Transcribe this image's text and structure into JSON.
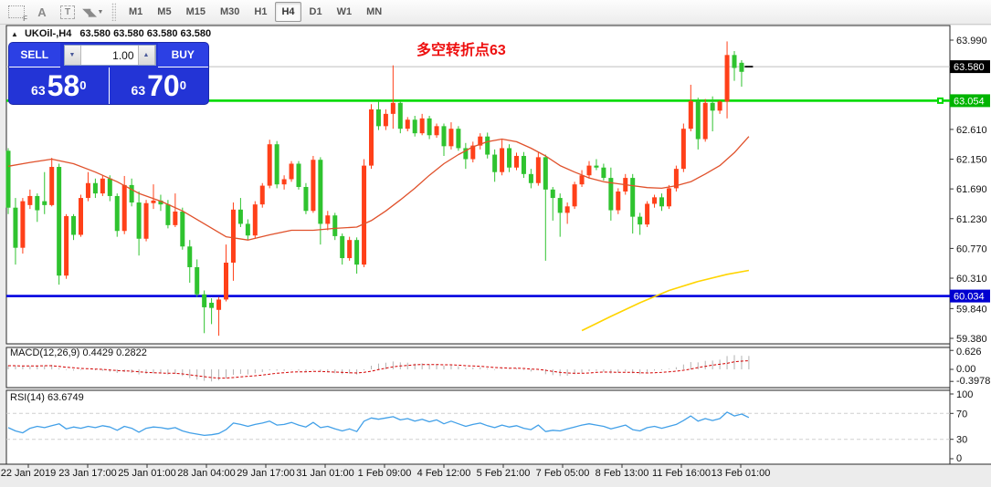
{
  "toolbar": {
    "icons": [
      {
        "name": "dotted-box-f-icon",
        "glyph": "F"
      },
      {
        "name": "letter-a-icon",
        "glyph": "A"
      },
      {
        "name": "text-label-icon",
        "glyph": "T"
      },
      {
        "name": "arrows-icon",
        "glyph": "◥◣"
      },
      {
        "name": "dropdown-caret-icon",
        "glyph": "▼"
      }
    ],
    "timeframes": [
      "M1",
      "M5",
      "M15",
      "M30",
      "H1",
      "H4",
      "D1",
      "W1",
      "MN"
    ],
    "active_timeframe": "H4"
  },
  "chart_header": {
    "collapse_icon": "▲",
    "symbol_period": "UKOil-,H4",
    "ohlc": "63.580 63.580 63.580 63.580"
  },
  "quote_panel": {
    "sell_label": "SELL",
    "buy_label": "BUY",
    "volume": "1.00",
    "down_arrow": "▼",
    "up_arrow": "▲",
    "sell_price_small": "63",
    "sell_price_big": "58",
    "sell_price_sup": "0",
    "buy_price_small": "63",
    "buy_price_big": "70",
    "buy_price_sup": "0"
  },
  "annotation": {
    "text": "多空转折点63",
    "color": "#ee1010"
  },
  "price_axis": {
    "plain_ticks": [
      [
        "63.990",
        63.99
      ],
      [
        "62.610",
        62.61
      ],
      [
        "62.150",
        62.15
      ],
      [
        "61.690",
        61.69
      ],
      [
        "61.230",
        61.23
      ],
      [
        "60.770",
        60.77
      ],
      [
        "60.310",
        60.31
      ],
      [
        "59.840",
        59.84
      ],
      [
        "59.380",
        59.38
      ]
    ],
    "current_badge": {
      "label": "63.580",
      "price": 63.58,
      "bg": "#000000"
    },
    "green_badge": {
      "label": "63.054",
      "price": 63.054,
      "bg": "#00b400"
    },
    "blue_badge": {
      "label": "60.034",
      "price": 60.034,
      "bg": "#0000d0"
    }
  },
  "macd_panel": {
    "label": "MACD(12,26,9) 0.4429 0.2822",
    "axis": [
      [
        "0.626",
        0.626
      ],
      [
        "0.00",
        0.0
      ],
      [
        "-0.3978",
        -0.3978
      ]
    ]
  },
  "rsi_panel": {
    "label": "RSI(14) 63.6749",
    "axis": [
      [
        "100",
        100
      ],
      [
        "70",
        70
      ],
      [
        "30",
        30
      ],
      [
        "0",
        0
      ]
    ],
    "levels": [
      70,
      30
    ]
  },
  "time_axis": {
    "labels": [
      "22 Jan 2019",
      "23 Jan 17:00",
      "25 Jan 01:00",
      "28 Jan 04:00",
      "29 Jan 17:00",
      "31 Jan 01:00",
      "1 Feb 09:00",
      "4 Feb 12:00",
      "5 Feb 21:00",
      "7 Feb 05:00",
      "8 Feb 13:00",
      "11 Feb 16:00",
      "13 Feb 01:00"
    ]
  },
  "colors": {
    "up": "#ff4019",
    "down": "#2fc32f",
    "doji": "#1a1a1a",
    "ma_fast": "#e0512b",
    "ma_slow": "#ffd400",
    "hline_green": "#00da00",
    "hline_blue": "#0000e0",
    "current_price_line": "#bfbfbf",
    "macd_bar": "#b2b2b2",
    "macd_signal": "#d40000",
    "rsi_line": "#42a0e8",
    "rsi_level": "#cfcfcf",
    "panel_border": "#2a2a2a",
    "axis_text": "#111111"
  },
  "chart_data": {
    "type": "candlestick",
    "symbol": "UKOil-",
    "period": "H4",
    "ylim": [
      59.25,
      64.05
    ],
    "candles_ohlc": [
      [
        62.28,
        62.32,
        61.3,
        61.4
      ],
      [
        61.4,
        61.55,
        60.52,
        60.78
      ],
      [
        60.78,
        61.55,
        60.69,
        61.5
      ],
      [
        61.44,
        61.68,
        61.38,
        61.58
      ],
      [
        61.58,
        61.62,
        61.18,
        61.36
      ],
      [
        61.5,
        61.95,
        61.3,
        61.44
      ],
      [
        61.44,
        62.17,
        61.42,
        62.03
      ],
      [
        62.03,
        62.08,
        60.21,
        60.35
      ],
      [
        60.35,
        61.3,
        60.3,
        61.27
      ],
      [
        61.27,
        61.3,
        60.9,
        60.98
      ],
      [
        60.98,
        61.6,
        60.95,
        61.55
      ],
      [
        61.55,
        61.95,
        61.5,
        61.78
      ],
      [
        61.78,
        61.85,
        61.55,
        61.62
      ],
      [
        61.62,
        61.9,
        61.58,
        61.85
      ],
      [
        61.85,
        61.9,
        61.5,
        61.58
      ],
      [
        61.58,
        61.62,
        60.95,
        61.04
      ],
      [
        61.04,
        61.89,
        60.99,
        61.75
      ],
      [
        61.75,
        61.85,
        61.42,
        61.48
      ],
      [
        61.48,
        61.65,
        60.66,
        60.92
      ],
      [
        60.92,
        61.52,
        60.88,
        61.47
      ],
      [
        61.47,
        61.76,
        61.38,
        61.51
      ],
      [
        61.51,
        61.6,
        61.35,
        61.45
      ],
      [
        61.45,
        61.52,
        61.08,
        61.13
      ],
      [
        61.13,
        61.62,
        61.1,
        61.34
      ],
      [
        61.34,
        61.4,
        60.75,
        60.8
      ],
      [
        60.8,
        60.9,
        60.24,
        60.48
      ],
      [
        60.48,
        60.6,
        60.02,
        60.06
      ],
      [
        60.06,
        60.12,
        59.46,
        59.86
      ],
      [
        59.93,
        60.0,
        59.6,
        59.85
      ],
      [
        59.82,
        60.02,
        59.42,
        59.98
      ],
      [
        59.98,
        60.83,
        59.95,
        60.55
      ],
      [
        60.55,
        61.48,
        60.27,
        61.37
      ],
      [
        61.37,
        61.55,
        61.1,
        61.15
      ],
      [
        61.15,
        61.22,
        60.9,
        60.97
      ],
      [
        60.97,
        61.5,
        60.92,
        61.45
      ],
      [
        61.45,
        61.78,
        61.4,
        61.74
      ],
      [
        61.74,
        62.45,
        61.7,
        62.38
      ],
      [
        62.38,
        62.43,
        61.7,
        61.76
      ],
      [
        61.76,
        61.9,
        61.68,
        61.84
      ],
      [
        61.84,
        62.12,
        61.8,
        62.08
      ],
      [
        62.08,
        62.12,
        61.68,
        61.72
      ],
      [
        61.72,
        61.78,
        61.3,
        61.35
      ],
      [
        61.35,
        62.2,
        61.32,
        62.14
      ],
      [
        62.14,
        62.18,
        60.83,
        61.15
      ],
      [
        61.15,
        61.35,
        61.05,
        61.28
      ],
      [
        61.28,
        61.32,
        60.9,
        60.96
      ],
      [
        60.96,
        61.0,
        60.52,
        60.62
      ],
      [
        60.62,
        60.95,
        60.58,
        60.9
      ],
      [
        60.9,
        60.94,
        60.38,
        60.52
      ],
      [
        60.52,
        62.15,
        60.48,
        62.05
      ],
      [
        62.05,
        63.0,
        62.0,
        62.92
      ],
      [
        62.92,
        63.05,
        62.6,
        62.66
      ],
      [
        62.66,
        62.92,
        62.6,
        62.85
      ],
      [
        62.85,
        63.6,
        62.62,
        63.02
      ],
      [
        63.02,
        63.05,
        62.55,
        62.62
      ],
      [
        62.62,
        62.8,
        62.58,
        62.76
      ],
      [
        62.76,
        62.82,
        62.5,
        62.55
      ],
      [
        62.55,
        62.85,
        62.52,
        62.78
      ],
      [
        62.78,
        62.82,
        62.46,
        62.52
      ],
      [
        62.52,
        62.7,
        62.48,
        62.66
      ],
      [
        62.66,
        62.7,
        62.2,
        62.35
      ],
      [
        62.35,
        62.72,
        62.3,
        62.62
      ],
      [
        62.62,
        62.66,
        62.28,
        62.32
      ],
      [
        62.32,
        62.4,
        62.0,
        62.15
      ],
      [
        62.15,
        62.42,
        62.1,
        62.36
      ],
      [
        62.36,
        62.55,
        62.3,
        62.5
      ],
      [
        62.5,
        62.56,
        62.16,
        62.22
      ],
      [
        62.22,
        62.3,
        61.8,
        61.95
      ],
      [
        61.95,
        62.45,
        61.9,
        62.32
      ],
      [
        62.32,
        62.38,
        61.95,
        62.02
      ],
      [
        62.02,
        62.25,
        61.98,
        62.2
      ],
      [
        62.2,
        62.26,
        61.86,
        61.92
      ],
      [
        61.92,
        62.0,
        61.7,
        61.78
      ],
      [
        61.78,
        62.25,
        61.74,
        62.18
      ],
      [
        62.18,
        62.22,
        60.58,
        61.68
      ],
      [
        61.68,
        61.72,
        61.2,
        61.55
      ],
      [
        61.55,
        61.62,
        60.95,
        61.32
      ],
      [
        61.32,
        61.48,
        61.15,
        61.42
      ],
      [
        61.42,
        61.8,
        61.38,
        61.76
      ],
      [
        61.76,
        61.98,
        61.72,
        61.9
      ],
      [
        61.9,
        62.12,
        61.85,
        62.05
      ],
      [
        62.05,
        62.15,
        61.98,
        62.02
      ],
      [
        62.02,
        62.08,
        61.82,
        61.86
      ],
      [
        61.86,
        62.02,
        61.2,
        61.36
      ],
      [
        61.36,
        61.7,
        61.3,
        61.65
      ],
      [
        61.65,
        61.92,
        61.6,
        61.86
      ],
      [
        61.86,
        61.92,
        61.0,
        61.26
      ],
      [
        61.26,
        61.32,
        60.98,
        61.14
      ],
      [
        61.14,
        61.5,
        61.1,
        61.46
      ],
      [
        61.46,
        61.6,
        61.4,
        61.56
      ],
      [
        61.56,
        61.62,
        61.35,
        61.42
      ],
      [
        61.42,
        61.75,
        61.38,
        61.7
      ],
      [
        61.7,
        62.05,
        61.65,
        62.0
      ],
      [
        62.0,
        62.7,
        61.95,
        62.62
      ],
      [
        62.62,
        63.3,
        62.58,
        63.05
      ],
      [
        63.05,
        63.1,
        62.3,
        62.46
      ],
      [
        62.46,
        63.08,
        62.42,
        63.02
      ],
      [
        63.02,
        63.12,
        62.58,
        62.9
      ],
      [
        62.9,
        63.06,
        62.85,
        63.04
      ],
      [
        63.04,
        63.97,
        62.78,
        63.76
      ],
      [
        63.76,
        63.82,
        63.36,
        63.56
      ],
      [
        63.64,
        63.68,
        63.27,
        63.5
      ],
      [
        63.58,
        63.58,
        63.58,
        63.58
      ]
    ],
    "ma_fast_points": [
      [
        0,
        62.04
      ],
      [
        3,
        62.1
      ],
      [
        6,
        62.15
      ],
      [
        9,
        62.08
      ],
      [
        12,
        61.95
      ],
      [
        15,
        61.8
      ],
      [
        18,
        61.62
      ],
      [
        21,
        61.5
      ],
      [
        24,
        61.35
      ],
      [
        27,
        61.15
      ],
      [
        30,
        60.95
      ],
      [
        33,
        60.9
      ],
      [
        36,
        60.98
      ],
      [
        39,
        61.05
      ],
      [
        42,
        61.05
      ],
      [
        45,
        61.08
      ],
      [
        48,
        61.1
      ],
      [
        50,
        61.2
      ],
      [
        52,
        61.35
      ],
      [
        54,
        61.52
      ],
      [
        56,
        61.7
      ],
      [
        58,
        61.9
      ],
      [
        60,
        62.08
      ],
      [
        62,
        62.22
      ],
      [
        64,
        62.34
      ],
      [
        66,
        62.42
      ],
      [
        68,
        62.46
      ],
      [
        70,
        62.42
      ],
      [
        72,
        62.32
      ],
      [
        74,
        62.2
      ],
      [
        76,
        62.05
      ],
      [
        78,
        61.95
      ],
      [
        80,
        61.86
      ],
      [
        82,
        61.8
      ],
      [
        84,
        61.77
      ],
      [
        86,
        61.74
      ],
      [
        88,
        61.71
      ],
      [
        90,
        61.7
      ],
      [
        92,
        61.74
      ],
      [
        94,
        61.8
      ],
      [
        96,
        61.92
      ],
      [
        98,
        62.05
      ],
      [
        100,
        62.25
      ],
      [
        102,
        62.5
      ]
    ],
    "ma_slow_points": [
      [
        79,
        59.5
      ],
      [
        83,
        59.72
      ],
      [
        87,
        59.93
      ],
      [
        91,
        60.12
      ],
      [
        95,
        60.26
      ],
      [
        99,
        60.37
      ],
      [
        102,
        60.43
      ]
    ],
    "hline_green_price": 63.054,
    "hline_blue_price": 60.034,
    "current_price": 63.58,
    "macd_main": [
      0.14,
      0.12,
      0.1,
      0.11,
      0.12,
      0.13,
      0.15,
      0.04,
      -0.02,
      -0.04,
      -0.02,
      0.0,
      -0.03,
      -0.05,
      -0.08,
      -0.12,
      -0.09,
      -0.12,
      -0.17,
      -0.15,
      -0.13,
      -0.14,
      -0.17,
      -0.15,
      -0.22,
      -0.29,
      -0.34,
      -0.38,
      -0.4,
      -0.36,
      -0.29,
      -0.18,
      -0.15,
      -0.17,
      -0.13,
      -0.09,
      -0.03,
      -0.04,
      -0.05,
      -0.01,
      -0.04,
      -0.09,
      -0.02,
      -0.08,
      -0.09,
      -0.13,
      -0.16,
      -0.14,
      -0.17,
      -0.03,
      0.12,
      0.19,
      0.22,
      0.26,
      0.23,
      0.22,
      0.19,
      0.2,
      0.16,
      0.16,
      0.12,
      0.13,
      0.1,
      0.05,
      0.06,
      0.07,
      0.03,
      -0.02,
      0.02,
      0.01,
      0.03,
      -0.02,
      -0.07,
      -0.02,
      -0.16,
      -0.19,
      -0.22,
      -0.21,
      -0.16,
      -0.11,
      -0.06,
      -0.05,
      -0.08,
      -0.14,
      -0.11,
      -0.07,
      -0.13,
      -0.16,
      -0.1,
      -0.04,
      -0.03,
      0.02,
      0.07,
      0.16,
      0.24,
      0.23,
      0.28,
      0.29,
      0.32,
      0.44,
      0.47,
      0.45,
      0.4429
    ],
    "macd_signal": [
      0.12,
      0.12,
      0.11,
      0.11,
      0.11,
      0.12,
      0.12,
      0.1,
      0.07,
      0.05,
      0.03,
      0.02,
      0.01,
      0.0,
      -0.02,
      -0.04,
      -0.05,
      -0.06,
      -0.08,
      -0.1,
      -0.11,
      -0.12,
      -0.13,
      -0.13,
      -0.15,
      -0.18,
      -0.21,
      -0.24,
      -0.27,
      -0.29,
      -0.29,
      -0.27,
      -0.25,
      -0.23,
      -0.21,
      -0.19,
      -0.16,
      -0.13,
      -0.11,
      -0.09,
      -0.08,
      -0.08,
      -0.07,
      -0.07,
      -0.08,
      -0.09,
      -0.1,
      -0.11,
      -0.12,
      -0.1,
      -0.06,
      -0.01,
      0.04,
      0.08,
      0.11,
      0.13,
      0.15,
      0.16,
      0.16,
      0.16,
      0.15,
      0.15,
      0.14,
      0.12,
      0.11,
      0.1,
      0.08,
      0.06,
      0.05,
      0.04,
      0.04,
      0.03,
      0.01,
      0.0,
      -0.03,
      -0.07,
      -0.1,
      -0.12,
      -0.13,
      -0.13,
      -0.12,
      -0.1,
      -0.09,
      -0.09,
      -0.1,
      -0.1,
      -0.1,
      -0.11,
      -0.12,
      -0.11,
      -0.1,
      -0.08,
      -0.06,
      -0.03,
      0.01,
      0.06,
      0.1,
      0.14,
      0.17,
      0.2,
      0.25,
      0.27,
      0.2822
    ],
    "rsi": [
      48,
      43,
      40,
      47,
      50,
      48,
      51,
      54,
      46,
      49,
      47,
      50,
      48,
      51,
      49,
      44,
      50,
      47,
      41,
      47,
      49,
      48,
      46,
      48,
      43,
      40,
      38,
      36,
      37,
      39,
      45,
      55,
      53,
      50,
      53,
      55,
      58,
      52,
      53,
      56,
      52,
      49,
      56,
      48,
      50,
      46,
      43,
      46,
      42,
      58,
      63,
      61,
      63,
      65,
      60,
      62,
      58,
      61,
      57,
      60,
      54,
      58,
      54,
      50,
      53,
      55,
      51,
      48,
      52,
      49,
      51,
      47,
      45,
      52,
      42,
      44,
      43,
      46,
      49,
      52,
      54,
      52,
      50,
      46,
      49,
      52,
      45,
      43,
      48,
      50,
      47,
      50,
      53,
      59,
      66,
      58,
      62,
      59,
      62,
      72,
      66,
      69,
      63.7
    ]
  }
}
